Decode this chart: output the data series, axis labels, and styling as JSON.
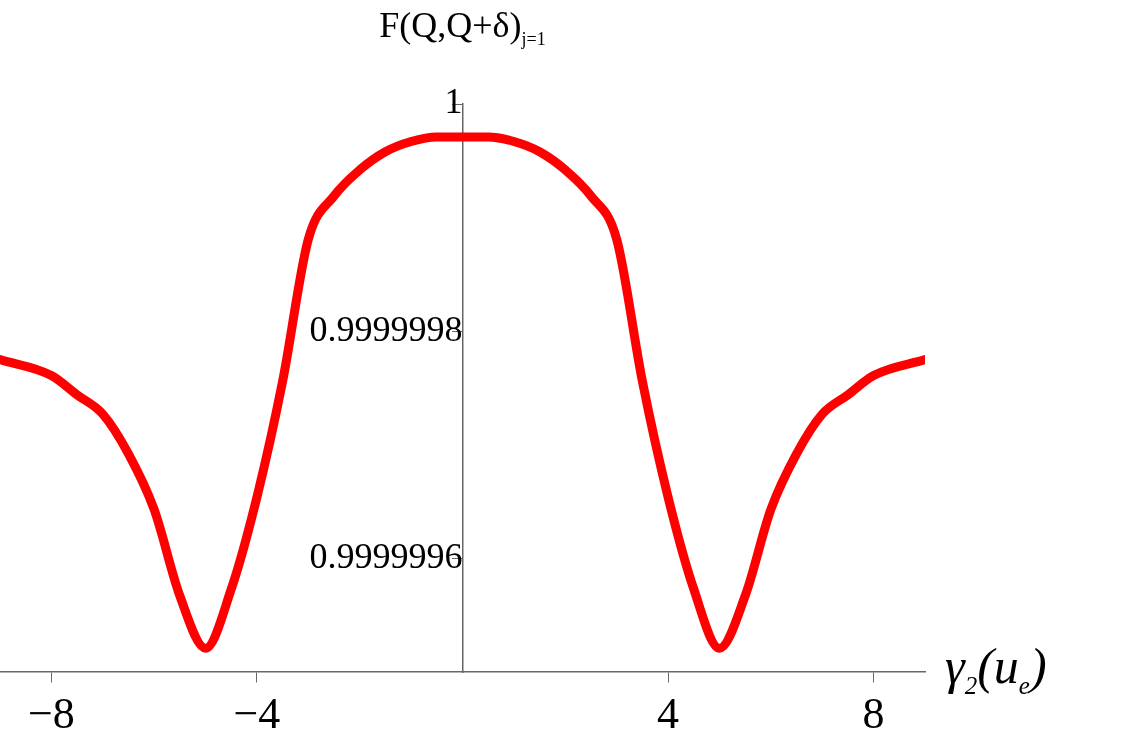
{
  "chart_data": {
    "type": "line",
    "xlabel": "γ$_{2}$(u$_{e}$)",
    "ylabel": "F(Q,Q+δ)$_{j=1}$",
    "x": [
      -9,
      -8,
      -7.5,
      -7,
      -6.5,
      -6,
      -5.5,
      -5,
      -4.5,
      -4,
      -3.5,
      -3,
      -2.5,
      -2,
      -1.5,
      -1,
      -0.5,
      0,
      0.5,
      1,
      1.5,
      2,
      2.5,
      3,
      3.5,
      4,
      4.5,
      5,
      5.5,
      6,
      6.5,
      7,
      7.5,
      8,
      9
    ],
    "series": [
      {
        "color": "#ff0000",
        "values": [
          0.999999775,
          0.999999761,
          0.999999744,
          0.999999727,
          0.999999692,
          0.999999643,
          0.999999567,
          0.999999521,
          0.999999573,
          0.999999654,
          0.999999756,
          0.999999881,
          0.999999919,
          0.999999942,
          0.999999958,
          0.999999967,
          0.999999971,
          0.999999971,
          0.999999971,
          0.999999967,
          0.999999958,
          0.999999942,
          0.999999919,
          0.999999881,
          0.999999756,
          0.999999654,
          0.999999573,
          0.999999521,
          0.999999567,
          0.999999643,
          0.999999692,
          0.999999727,
          0.999999744,
          0.999999761,
          0.999999775
        ]
      }
    ],
    "xlim": [
      -9,
      9
    ],
    "ylim": [
      0.9999995,
      1
    ],
    "xticks": [
      -8,
      -4,
      4,
      8
    ],
    "yticks": [
      0.9999996,
      0.9999998,
      1
    ]
  }
}
